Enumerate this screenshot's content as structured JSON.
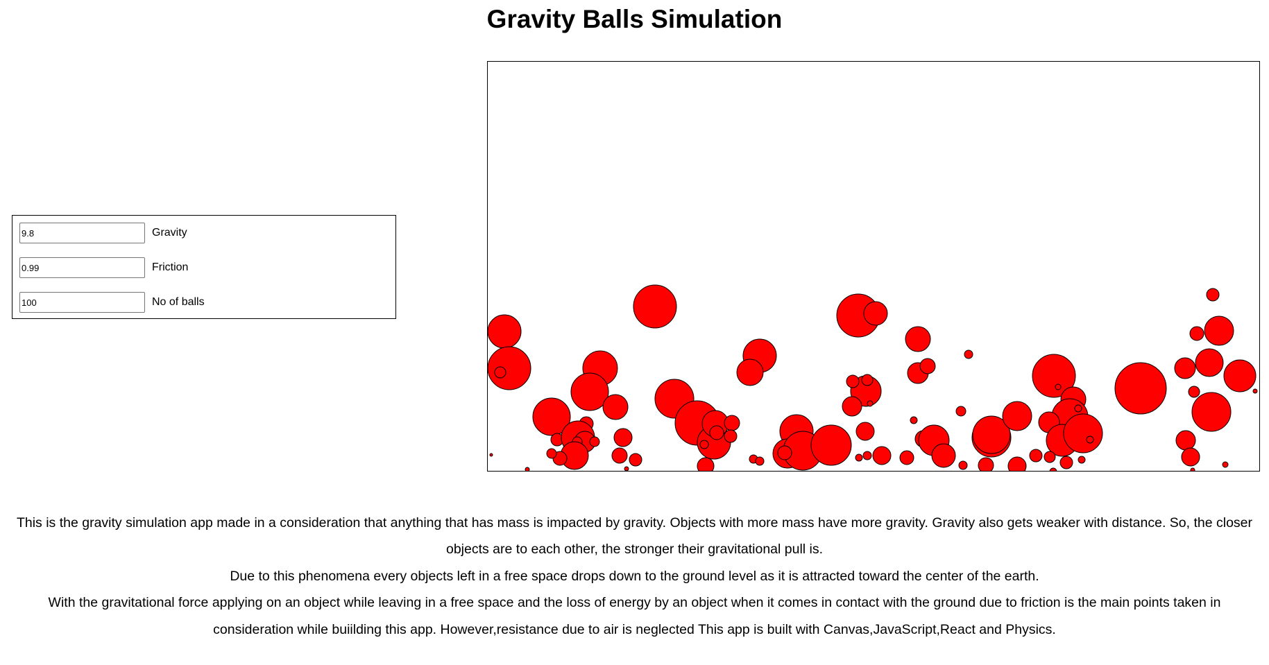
{
  "page": {
    "title": "Gravity Balls Simulation"
  },
  "controls": {
    "gravity": {
      "label": "Gravity",
      "value": "9.8"
    },
    "friction": {
      "label": "Friction",
      "value": "0.99"
    },
    "balls": {
      "label": "No of balls",
      "value": "100"
    }
  },
  "canvas": {
    "ball_fill": "#ff0000",
    "ball_stroke": "#000000"
  },
  "description": {
    "paragraphs": [
      "This is the gravity simulation app made in a consideration that anything that has mass is impacted by gravity. Objects with more mass have more gravity. Gravity also gets weaker with distance. So, the closer objects are to each other, the stronger their gravitational pull is.",
      "Due to this phenomena every objects left in a free space drops down to the ground level as it is attracted toward the center of the earth.",
      "With the gravitational force applying on an object while leaving in a free space and the loss of energy by an object when it comes in contact with the ground due to friction is the main points taken in consideration while buiilding this app. However,resistance due to air is neglected This app is built with Canvas,JavaScript,React and Physics."
    ]
  }
}
